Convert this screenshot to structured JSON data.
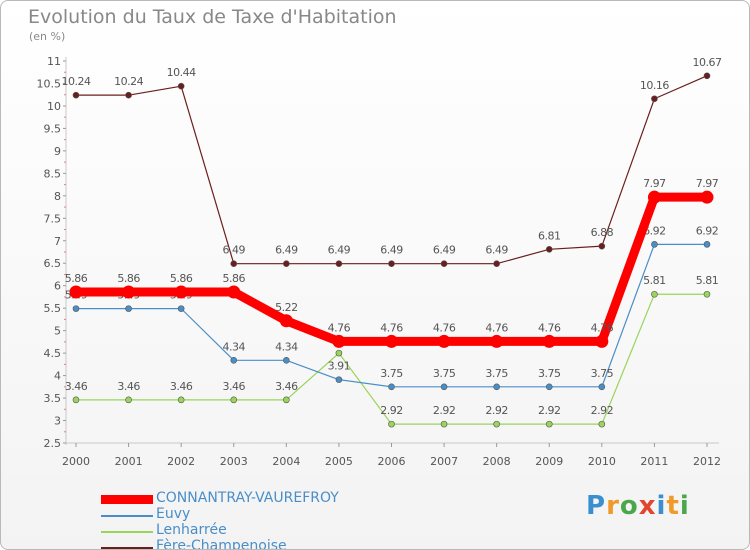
{
  "chart_title": "Evolution du Taux de Taxe d'Habitation",
  "chart_unit": "(en %)",
  "logo": {
    "text": "Proxiti",
    "letters": [
      {
        "ch": "P",
        "color": "#3a8fd0"
      },
      {
        "ch": "r",
        "color": "#f09a2a"
      },
      {
        "ch": "o",
        "color": "#4aa84a"
      },
      {
        "ch": "x",
        "color": "#e2452f"
      },
      {
        "ch": "i",
        "color": "#3a8fd0"
      },
      {
        "ch": "t",
        "color": "#f09a2a"
      },
      {
        "ch": "i",
        "color": "#4aa84a"
      }
    ]
  },
  "chart_data": {
    "type": "line",
    "title": "Evolution du Taux de Taxe d'Habitation",
    "ylabel": "(en %)",
    "xlabel": "",
    "x": [
      "2000",
      "2001",
      "2002",
      "2003",
      "2004",
      "2005",
      "2006",
      "2007",
      "2008",
      "2009",
      "2010",
      "2011",
      "2012"
    ],
    "ylim": [
      2.5,
      11
    ],
    "yticks": [
      "2.5",
      "3",
      "3.5",
      "4",
      "4.5",
      "5",
      "5.5",
      "6",
      "6.5",
      "7",
      "7.5",
      "8",
      "8.5",
      "9",
      "9.5",
      "10",
      "10.5",
      "11"
    ],
    "grid": false,
    "legend_position": "bottom-left",
    "series": [
      {
        "name": "Fère-Champenoise",
        "color": "#6b1e1e",
        "values": [
          10.24,
          10.24,
          10.44,
          6.49,
          6.49,
          6.49,
          6.49,
          6.49,
          6.49,
          6.81,
          6.88,
          10.16,
          10.67
        ],
        "labels": [
          "10.24",
          "10.24",
          "10.44",
          "6.49",
          "6.49",
          "6.49",
          "6.49",
          "6.49",
          "6.49",
          "6.81",
          "6.88",
          "10.16",
          "10.67"
        ]
      },
      {
        "name": "Lenharrée",
        "color": "#9ad45a",
        "values": [
          3.46,
          3.46,
          3.46,
          3.46,
          3.46,
          4.5,
          2.92,
          2.92,
          2.92,
          2.92,
          2.92,
          5.81,
          5.81
        ],
        "labels": [
          "3.46",
          "3.46",
          "3.46",
          "3.46",
          "3.46",
          "",
          "2.92",
          "2.92",
          "2.92",
          "2.92",
          "2.92",
          "5.81",
          "5.81"
        ]
      },
      {
        "name": "Euvy",
        "color": "#4a8ec8",
        "values": [
          5.49,
          5.49,
          5.49,
          4.34,
          4.34,
          3.91,
          3.75,
          3.75,
          3.75,
          3.75,
          3.75,
          6.92,
          6.92
        ],
        "labels": [
          "5.49",
          "5.49",
          "5.49",
          "4.34",
          "4.34",
          "3.91",
          "3.75",
          "3.75",
          "3.75",
          "3.75",
          "3.75",
          "6.92",
          "6.92"
        ]
      },
      {
        "name": "CONNANTRAY-VAUREFROY",
        "color": "#ff0000",
        "values": [
          5.86,
          5.86,
          5.86,
          5.86,
          5.22,
          4.76,
          4.76,
          4.76,
          4.76,
          4.76,
          4.76,
          7.97,
          7.97
        ],
        "labels": [
          "5.86",
          "5.86",
          "5.86",
          "5.86",
          "5.22",
          "4.76",
          "4.76",
          "4.76",
          "4.76",
          "4.76",
          "4.76",
          "7.97",
          "7.97"
        ]
      }
    ],
    "legend": [
      {
        "name": "CONNANTRAY-VAUREFROY",
        "color": "#ff0000",
        "label_color": "#4a8ec8",
        "thick": true
      },
      {
        "name": "Euvy",
        "color": "#4a8ec8",
        "label_color": "#4a8ec8",
        "thick": false
      },
      {
        "name": "Lenharrée",
        "color": "#9ad45a",
        "label_color": "#4a8ec8",
        "thick": false
      },
      {
        "name": "Fère-Champenoise",
        "color": "#6b1e1e",
        "label_color": "#4a8ec8",
        "thick": false
      }
    ]
  }
}
